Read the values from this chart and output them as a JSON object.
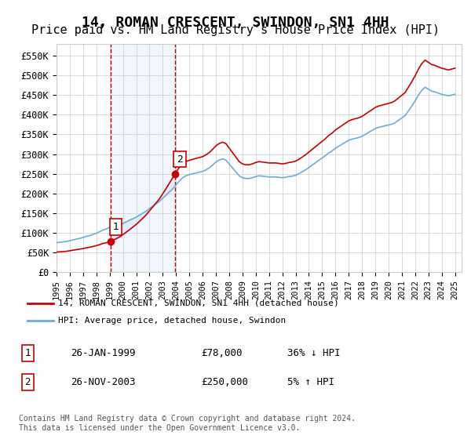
{
  "title": "14, ROMAN CRESCENT, SWINDON, SN1 4HH",
  "subtitle": "Price paid vs. HM Land Registry's House Price Index (HPI)",
  "title_fontsize": 13,
  "subtitle_fontsize": 11,
  "ylabel_ticks": [
    "£0",
    "£50K",
    "£100K",
    "£150K",
    "£200K",
    "£250K",
    "£300K",
    "£350K",
    "£400K",
    "£450K",
    "£500K",
    "£550K"
  ],
  "ytick_values": [
    0,
    50000,
    100000,
    150000,
    200000,
    250000,
    300000,
    350000,
    400000,
    450000,
    500000,
    550000
  ],
  "ylim": [
    0,
    580000
  ],
  "xlim_start": 1995.0,
  "xlim_end": 2025.5,
  "sale1_year": 1999.07,
  "sale1_price": 78000,
  "sale2_year": 2003.9,
  "sale2_price": 250000,
  "shade_color": "#d0e4f7",
  "shade_alpha": 0.5,
  "hpi_line_color": "#6baed6",
  "price_line_color": "#cc0000",
  "sale_marker_color": "#cc0000",
  "vline_color": "#cc0000",
  "vline_style": "--",
  "legend_label1": "14, ROMAN CRESCENT, SWINDON, SN1 4HH (detached house)",
  "legend_label2": "HPI: Average price, detached house, Swindon",
  "table_rows": [
    {
      "num": "1",
      "date": "26-JAN-1999",
      "price": "£78,000",
      "change": "36% ↓ HPI"
    },
    {
      "num": "2",
      "date": "26-NOV-2003",
      "price": "£250,000",
      "change": "5% ↑ HPI"
    }
  ],
  "footer": "Contains HM Land Registry data © Crown copyright and database right 2024.\nThis data is licensed under the Open Government Licence v3.0.",
  "background_color": "#ffffff",
  "grid_color": "#cccccc",
  "xtick_years": [
    1995,
    1996,
    1997,
    1998,
    1999,
    2000,
    2001,
    2002,
    2003,
    2004,
    2005,
    2006,
    2007,
    2008,
    2009,
    2010,
    2011,
    2012,
    2013,
    2014,
    2015,
    2016,
    2017,
    2018,
    2019,
    2020,
    2021,
    2022,
    2023,
    2024,
    2025
  ],
  "hpi_years": [
    1995,
    1995.25,
    1995.5,
    1995.75,
    1996,
    1996.25,
    1996.5,
    1996.75,
    1997,
    1997.25,
    1997.5,
    1997.75,
    1998,
    1998.25,
    1998.5,
    1998.75,
    1999,
    1999.25,
    1999.5,
    1999.75,
    2000,
    2000.25,
    2000.5,
    2000.75,
    2001,
    2001.25,
    2001.5,
    2001.75,
    2002,
    2002.25,
    2002.5,
    2002.75,
    2003,
    2003.25,
    2003.5,
    2003.75,
    2004,
    2004.25,
    2004.5,
    2004.75,
    2005,
    2005.25,
    2005.5,
    2005.75,
    2006,
    2006.25,
    2006.5,
    2006.75,
    2007,
    2007.25,
    2007.5,
    2007.75,
    2008,
    2008.25,
    2008.5,
    2008.75,
    2009,
    2009.25,
    2009.5,
    2009.75,
    2010,
    2010.25,
    2010.5,
    2010.75,
    2011,
    2011.25,
    2011.5,
    2011.75,
    2012,
    2012.25,
    2012.5,
    2012.75,
    2013,
    2013.25,
    2013.5,
    2013.75,
    2014,
    2014.25,
    2014.5,
    2014.75,
    2015,
    2015.25,
    2015.5,
    2015.75,
    2016,
    2016.25,
    2016.5,
    2016.75,
    2017,
    2017.25,
    2017.5,
    2017.75,
    2018,
    2018.25,
    2018.5,
    2018.75,
    2019,
    2019.25,
    2019.5,
    2019.75,
    2020,
    2020.25,
    2020.5,
    2020.75,
    2021,
    2021.25,
    2021.5,
    2021.75,
    2022,
    2022.25,
    2022.5,
    2022.75,
    2023,
    2023.25,
    2023.5,
    2023.75,
    2024,
    2024.25,
    2024.5,
    2024.75,
    2025
  ],
  "hpi_values": [
    75000,
    76000,
    77000,
    78000,
    80000,
    82000,
    84000,
    86000,
    88000,
    91000,
    93000,
    96000,
    99000,
    103000,
    107000,
    110000,
    114000,
    116000,
    118000,
    120000,
    124000,
    128000,
    132000,
    136000,
    140000,
    145000,
    150000,
    155000,
    162000,
    168000,
    174000,
    180000,
    188000,
    196000,
    204000,
    212000,
    222000,
    232000,
    240000,
    245000,
    248000,
    250000,
    252000,
    254000,
    256000,
    260000,
    265000,
    272000,
    280000,
    285000,
    288000,
    285000,
    275000,
    265000,
    255000,
    245000,
    240000,
    238000,
    238000,
    240000,
    243000,
    245000,
    244000,
    243000,
    242000,
    242000,
    242000,
    241000,
    240000,
    241000,
    243000,
    244000,
    246000,
    250000,
    255000,
    260000,
    266000,
    272000,
    278000,
    284000,
    290000,
    296000,
    303000,
    308000,
    315000,
    320000,
    325000,
    330000,
    335000,
    338000,
    340000,
    342000,
    345000,
    350000,
    355000,
    360000,
    365000,
    368000,
    370000,
    372000,
    374000,
    376000,
    380000,
    386000,
    392000,
    398000,
    410000,
    422000,
    435000,
    450000,
    462000,
    470000,
    465000,
    460000,
    458000,
    455000,
    452000,
    450000,
    448000,
    450000,
    452000
  ]
}
